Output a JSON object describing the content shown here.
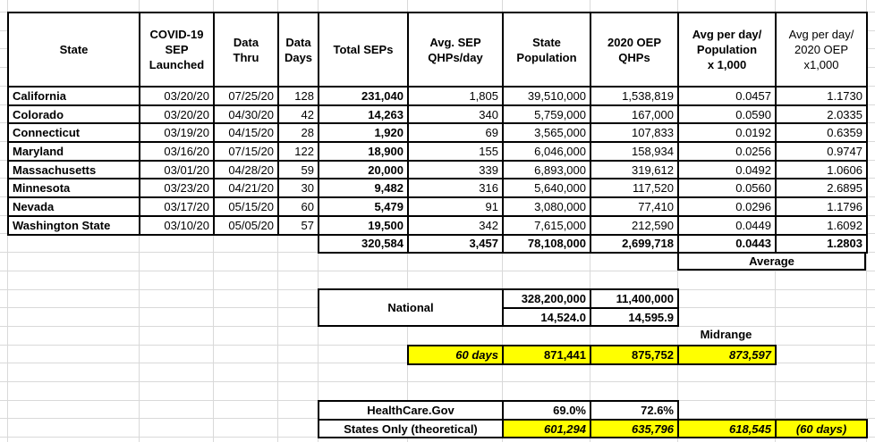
{
  "colors": {
    "highlight": "#ffff00",
    "gridline": "#d9d9d9",
    "border": "#000000"
  },
  "table": {
    "headers": [
      "State",
      "COVID-19\nSEP\nLaunched",
      "Data\nThru",
      "Data\nDays",
      "Total SEPs",
      "Avg. SEP\nQHPs/day",
      "State\nPopulation",
      "2020 OEP\nQHPs",
      "Avg per day/\nPopulation\nx 1,000",
      "Avg per day/\n2020 OEP\nx1,000"
    ],
    "rows": [
      [
        "California",
        "03/20/20",
        "07/25/20",
        "128",
        "231,040",
        "1,805",
        "39,510,000",
        "1,538,819",
        "0.0457",
        "1.1730"
      ],
      [
        "Colorado",
        "03/20/20",
        "04/30/20",
        "42",
        "14,263",
        "340",
        "5,759,000",
        "167,000",
        "0.0590",
        "2.0335"
      ],
      [
        "Connecticut",
        "03/19/20",
        "04/15/20",
        "28",
        "1,920",
        "69",
        "3,565,000",
        "107,833",
        "0.0192",
        "0.6359"
      ],
      [
        "Maryland",
        "03/16/20",
        "07/15/20",
        "122",
        "18,900",
        "155",
        "6,046,000",
        "158,934",
        "0.0256",
        "0.9747"
      ],
      [
        "Massachusetts",
        "03/01/20",
        "04/28/20",
        "59",
        "20,000",
        "339",
        "6,893,000",
        "319,612",
        "0.0492",
        "1.0606"
      ],
      [
        "Minnesota",
        "03/23/20",
        "04/21/20",
        "30",
        "9,482",
        "316",
        "5,640,000",
        "117,520",
        "0.0560",
        "2.6895"
      ],
      [
        "Nevada",
        "03/17/20",
        "05/15/20",
        "60",
        "5,479",
        "91",
        "3,080,000",
        "77,410",
        "0.0296",
        "1.1796"
      ],
      [
        "Washington State",
        "03/10/20",
        "05/05/20",
        "57",
        "19,500",
        "342",
        "7,615,000",
        "212,590",
        "0.0449",
        "1.6092"
      ]
    ],
    "totals": [
      "320,584",
      "3,457",
      "78,108,000",
      "2,699,718",
      "0.0443",
      "1.2803"
    ],
    "average_label": "Average"
  },
  "national": {
    "label": "National",
    "row1": [
      "328,200,000",
      "11,400,000"
    ],
    "row2": [
      "14,524.0",
      "14,595.9"
    ]
  },
  "midrange_label": "Midrange",
  "sixty_days": {
    "label": "60 days",
    "values": [
      "871,441",
      "875,752",
      "873,597"
    ]
  },
  "bottom": {
    "row1_label": "HealthCare.Gov",
    "row1_values": [
      "69.0%",
      "72.6%"
    ],
    "row2_label": "States Only (theoretical)",
    "row2_values": [
      "601,294",
      "635,796",
      "618,545",
      "(60 days)"
    ]
  }
}
